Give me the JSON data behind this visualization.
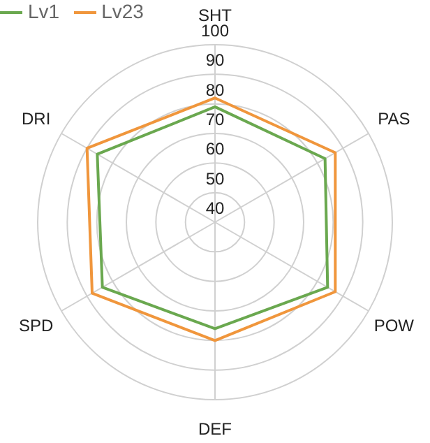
{
  "chart_data": {
    "type": "radar",
    "categories": [
      "SHT",
      "PAS",
      "POW",
      "DEF",
      "SPD",
      "DRI"
    ],
    "series": [
      {
        "name": "Lv1",
        "color": "#6aa84f",
        "values": [
          79,
          83,
          84,
          76,
          84,
          86
        ]
      },
      {
        "name": "Lv23",
        "color": "#f0963c",
        "values": [
          82,
          87,
          87,
          80,
          88,
          90
        ]
      }
    ],
    "ylim": [
      40,
      100
    ],
    "yticks": [
      40,
      50,
      60,
      70,
      80,
      90,
      100
    ],
    "grid": true,
    "legend": "top left",
    "marker": "none"
  }
}
